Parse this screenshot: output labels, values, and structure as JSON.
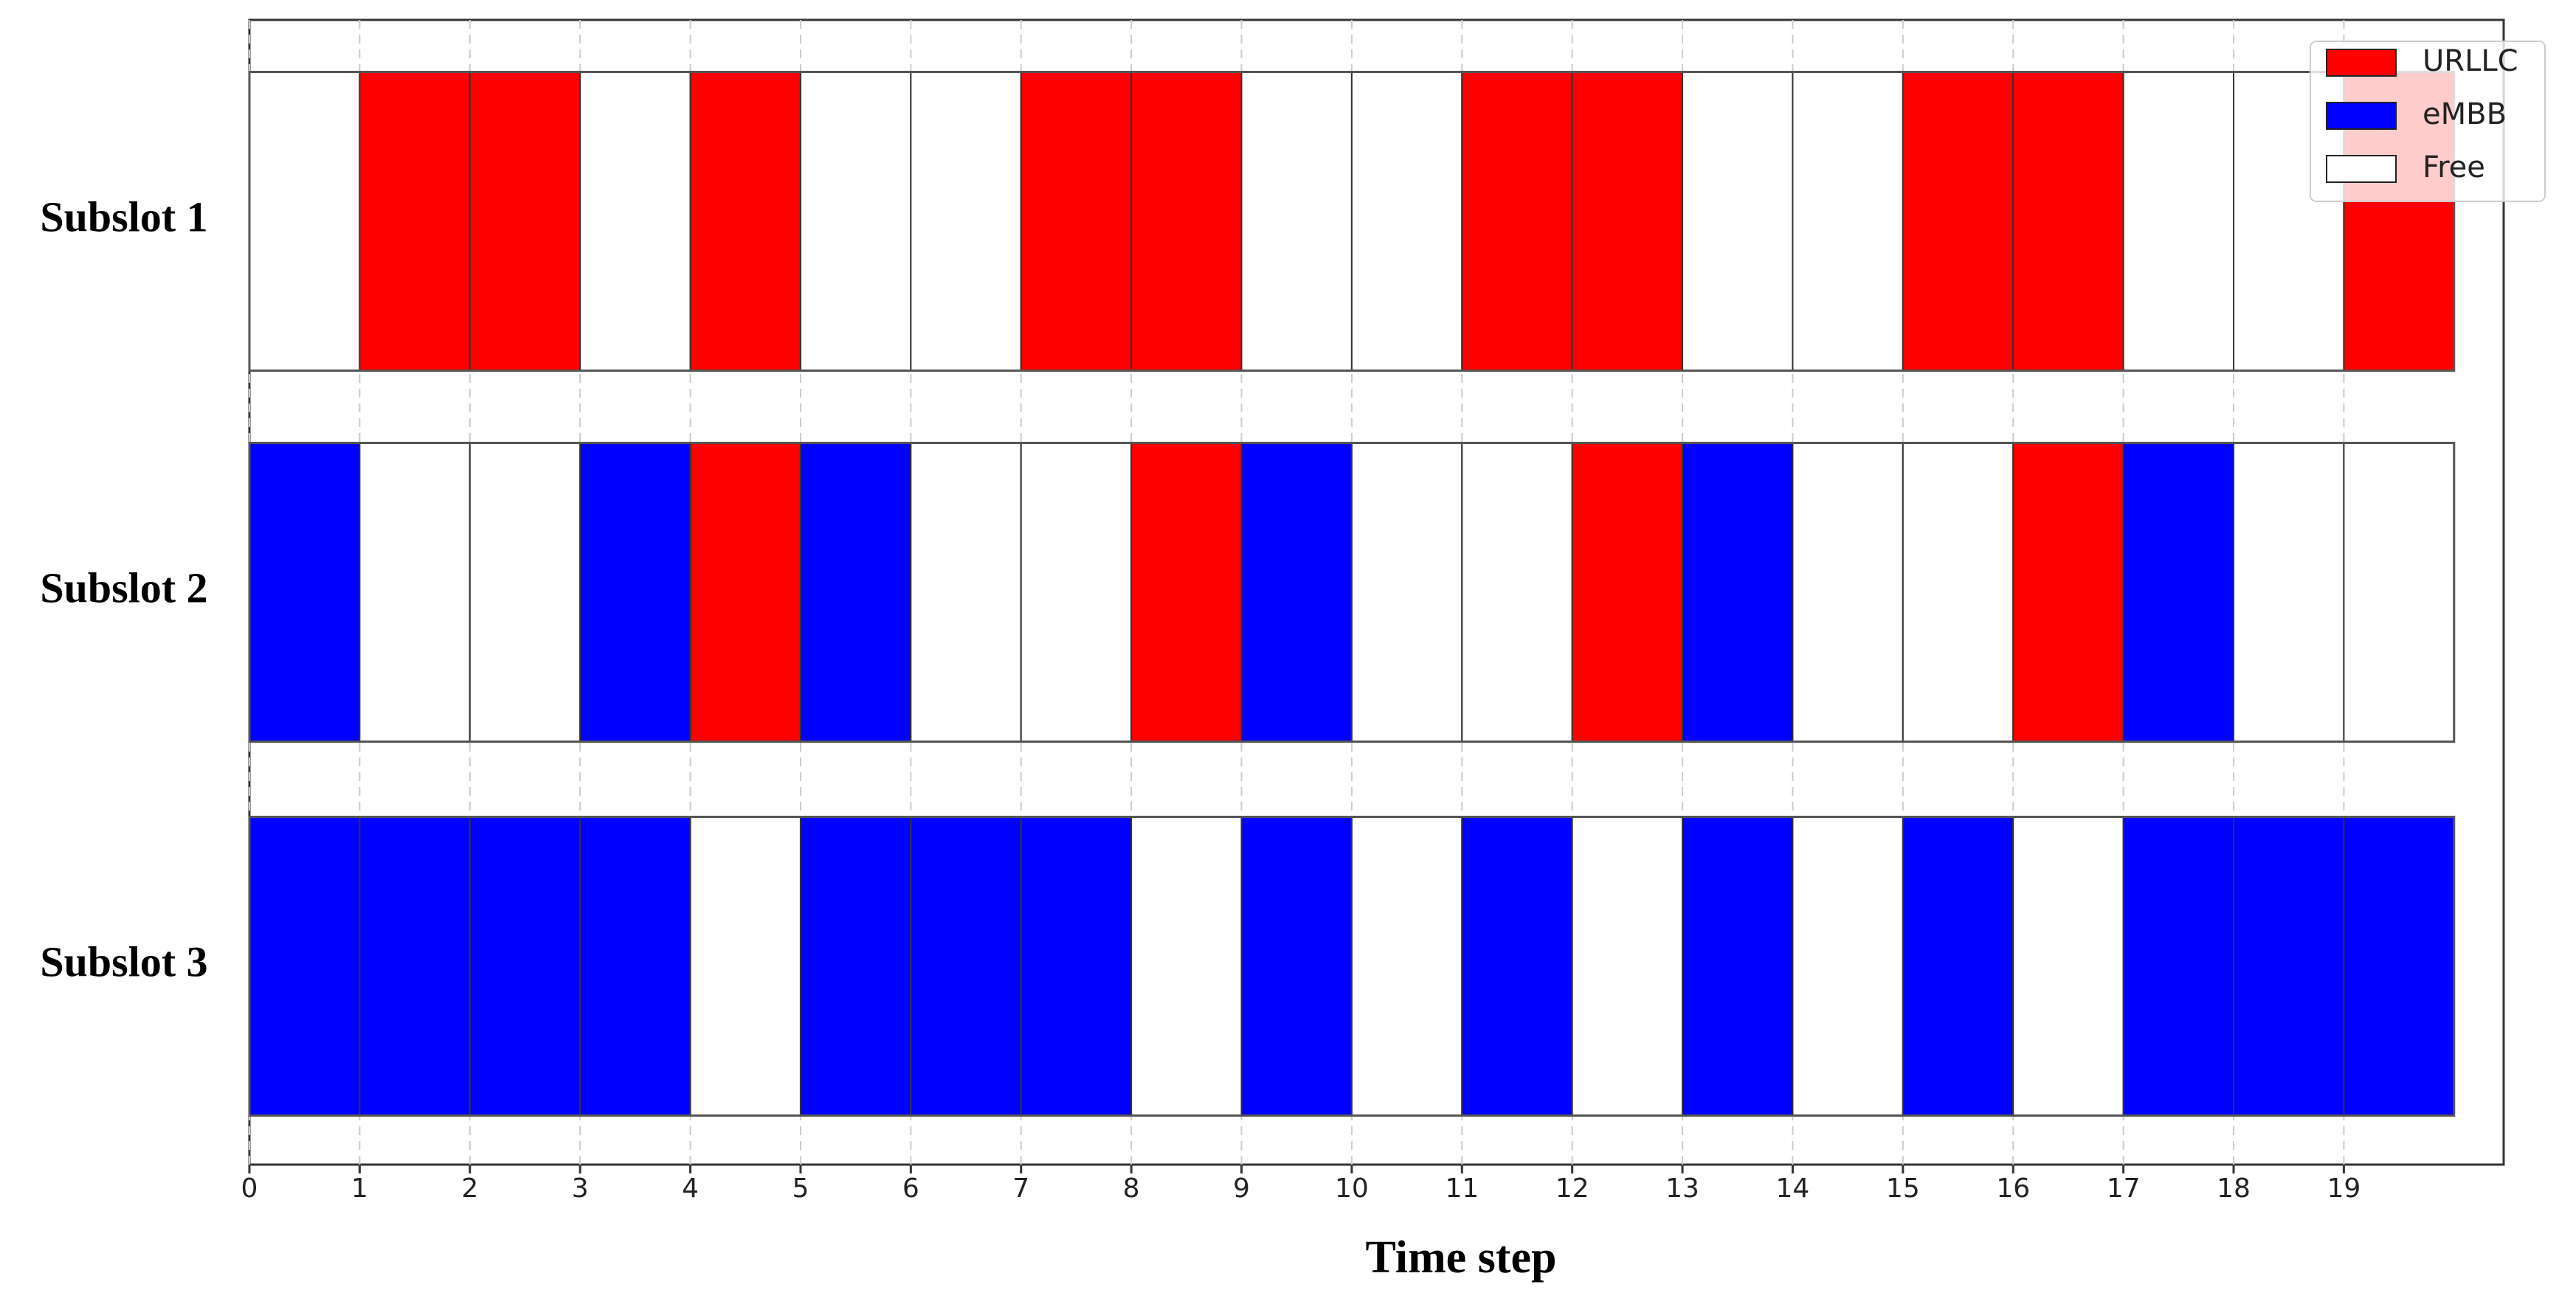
{
  "chart_data": {
    "type": "timeline",
    "xlabel": "Time step",
    "xlim": [
      0,
      20.45
    ],
    "xticks": [
      0,
      1,
      2,
      3,
      4,
      5,
      6,
      7,
      8,
      9,
      10,
      11,
      12,
      13,
      14,
      15,
      16,
      17,
      18,
      19
    ],
    "grid": true,
    "legend_position": "upper right",
    "legend": [
      {
        "name": "URLLC",
        "color": "#ff0000"
      },
      {
        "name": "eMBB",
        "color": "#0000ff"
      },
      {
        "name": "Free",
        "color": "#ffffff"
      }
    ],
    "rows": [
      {
        "label": "Subslot 1",
        "states": [
          "Free",
          "URLLC",
          "URLLC",
          "Free",
          "URLLC",
          "Free",
          "Free",
          "URLLC",
          "URLLC",
          "Free",
          "Free",
          "URLLC",
          "URLLC",
          "Free",
          "Free",
          "URLLC",
          "URLLC",
          "Free",
          "Free",
          "URLLC"
        ]
      },
      {
        "label": "Subslot 2",
        "states": [
          "eMBB",
          "Free",
          "Free",
          "eMBB",
          "URLLC",
          "eMBB",
          "Free",
          "Free",
          "URLLC",
          "eMBB",
          "Free",
          "Free",
          "URLLC",
          "eMBB",
          "Free",
          "Free",
          "URLLC",
          "eMBB",
          "Free",
          "Free"
        ]
      },
      {
        "label": "Subslot 3",
        "states": [
          "eMBB",
          "eMBB",
          "eMBB",
          "eMBB",
          "Free",
          "eMBB",
          "eMBB",
          "eMBB",
          "Free",
          "eMBB",
          "Free",
          "eMBB",
          "Free",
          "eMBB",
          "Free",
          "eMBB",
          "Free",
          "eMBB",
          "eMBB",
          "eMBB"
        ]
      }
    ]
  }
}
